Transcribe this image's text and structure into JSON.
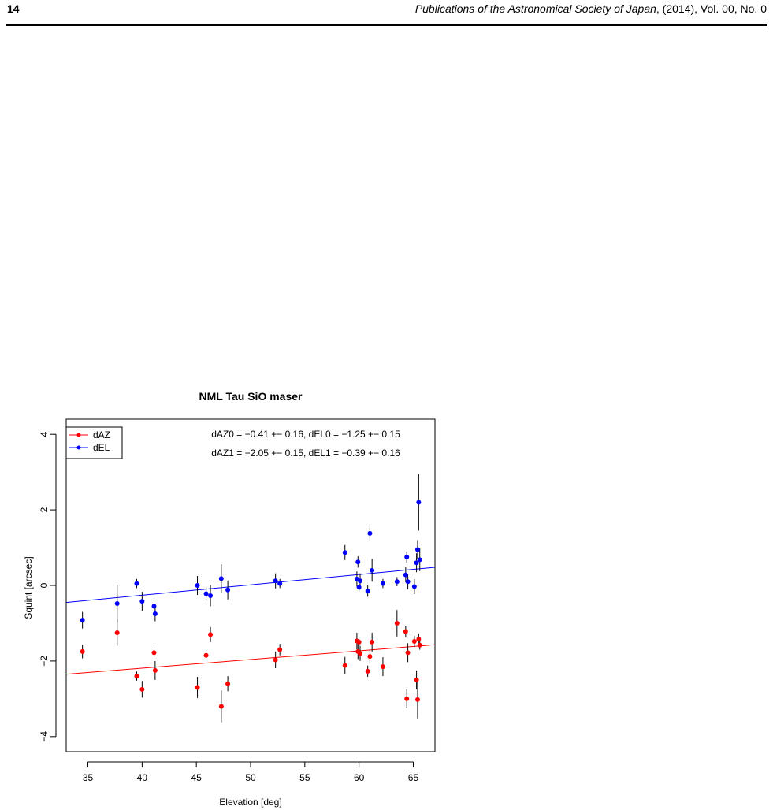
{
  "page_header": {
    "page_number": "14",
    "journal": "Publications of the Astronomical Society of Japan",
    "citation": ", (2014), Vol. 00, No. 0"
  },
  "chart_data": {
    "type": "scatter",
    "title": "NML Tau SiO maser",
    "xlabel": "Elevation [deg]",
    "ylabel": "Squint [arcsec]",
    "xlim": [
      33,
      67
    ],
    "ylim": [
      -4.4,
      4.4
    ],
    "x_ticks": [
      35,
      40,
      45,
      50,
      55,
      60,
      65
    ],
    "y_ticks": [
      -4,
      -2,
      0,
      2,
      4
    ],
    "y_tick_labels": [
      "−4",
      "−2",
      "0",
      "2",
      "4"
    ],
    "grid": false,
    "legend_position": "top-left",
    "annotations": [
      "dAZ0 = −0.41 +− 0.16, dEL0 = −1.25 +− 0.15",
      "dAZ1 = −2.05 +− 0.15, dEL1 = −0.39 +− 0.16"
    ],
    "series": [
      {
        "name": "dAZ",
        "color": "#ff0000",
        "points": [
          {
            "x": 34.5,
            "y": -1.75,
            "err": 0.18
          },
          {
            "x": 37.7,
            "y": -1.25,
            "err": 0.35
          },
          {
            "x": 39.5,
            "y": -2.4,
            "err": 0.12
          },
          {
            "x": 40.0,
            "y": -2.75,
            "err": 0.22
          },
          {
            "x": 41.1,
            "y": -1.78,
            "err": 0.2
          },
          {
            "x": 41.2,
            "y": -2.25,
            "err": 0.25
          },
          {
            "x": 45.1,
            "y": -2.7,
            "err": 0.28
          },
          {
            "x": 45.9,
            "y": -1.85,
            "err": 0.13
          },
          {
            "x": 46.3,
            "y": -1.3,
            "err": 0.2
          },
          {
            "x": 47.3,
            "y": -3.2,
            "err": 0.42
          },
          {
            "x": 47.9,
            "y": -2.6,
            "err": 0.2
          },
          {
            "x": 52.3,
            "y": -1.97,
            "err": 0.22
          },
          {
            "x": 52.7,
            "y": -1.7,
            "err": 0.15
          },
          {
            "x": 58.7,
            "y": -2.12,
            "err": 0.23
          },
          {
            "x": 59.8,
            "y": -1.47,
            "err": 0.22
          },
          {
            "x": 59.9,
            "y": -1.75,
            "err": 0.2
          },
          {
            "x": 60.0,
            "y": -1.5,
            "err": 0.1
          },
          {
            "x": 60.1,
            "y": -1.8,
            "err": 0.2
          },
          {
            "x": 60.8,
            "y": -2.27,
            "err": 0.15
          },
          {
            "x": 61.0,
            "y": -1.88,
            "err": 0.2
          },
          {
            "x": 61.2,
            "y": -1.5,
            "err": 0.25
          },
          {
            "x": 62.2,
            "y": -2.15,
            "err": 0.25
          },
          {
            "x": 63.5,
            "y": -1.0,
            "err": 0.35
          },
          {
            "x": 64.3,
            "y": -1.22,
            "err": 0.15
          },
          {
            "x": 64.4,
            "y": -3.0,
            "err": 0.25
          },
          {
            "x": 64.5,
            "y": -1.78,
            "err": 0.25
          },
          {
            "x": 65.1,
            "y": -1.48,
            "err": 0.15
          },
          {
            "x": 65.3,
            "y": -2.5,
            "err": 0.25
          },
          {
            "x": 65.4,
            "y": -3.02,
            "err": 0.5
          },
          {
            "x": 65.5,
            "y": -1.42,
            "err": 0.15
          },
          {
            "x": 65.6,
            "y": -1.58,
            "err": 0.12
          }
        ],
        "fit_line": [
          [
            33,
            -2.35
          ],
          [
            67,
            -1.57
          ]
        ]
      },
      {
        "name": "dEL",
        "color": "#0000ff",
        "points": [
          {
            "x": 34.5,
            "y": -0.92,
            "err": 0.22
          },
          {
            "x": 37.7,
            "y": -0.48,
            "err": 0.5
          },
          {
            "x": 39.5,
            "y": 0.05,
            "err": 0.12
          },
          {
            "x": 40.0,
            "y": -0.42,
            "err": 0.25
          },
          {
            "x": 41.1,
            "y": -0.55,
            "err": 0.2
          },
          {
            "x": 41.2,
            "y": -0.75,
            "err": 0.2
          },
          {
            "x": 45.1,
            "y": 0.0,
            "err": 0.25
          },
          {
            "x": 45.9,
            "y": -0.22,
            "err": 0.2
          },
          {
            "x": 46.3,
            "y": -0.27,
            "err": 0.28
          },
          {
            "x": 47.3,
            "y": 0.18,
            "err": 0.38
          },
          {
            "x": 47.9,
            "y": -0.12,
            "err": 0.25
          },
          {
            "x": 52.3,
            "y": 0.12,
            "err": 0.2
          },
          {
            "x": 52.7,
            "y": 0.05,
            "err": 0.12
          },
          {
            "x": 58.7,
            "y": 0.87,
            "err": 0.2
          },
          {
            "x": 59.8,
            "y": 0.17,
            "err": 0.2
          },
          {
            "x": 59.9,
            "y": 0.62,
            "err": 0.15
          },
          {
            "x": 60.0,
            "y": -0.05,
            "err": 0.1
          },
          {
            "x": 60.1,
            "y": 0.12,
            "err": 0.2
          },
          {
            "x": 60.8,
            "y": -0.15,
            "err": 0.15
          },
          {
            "x": 61.0,
            "y": 1.38,
            "err": 0.2
          },
          {
            "x": 61.2,
            "y": 0.4,
            "err": 0.3
          },
          {
            "x": 62.2,
            "y": 0.05,
            "err": 0.12
          },
          {
            "x": 63.5,
            "y": 0.1,
            "err": 0.12
          },
          {
            "x": 64.3,
            "y": 0.28,
            "err": 0.2
          },
          {
            "x": 64.4,
            "y": 0.75,
            "err": 0.15
          },
          {
            "x": 64.5,
            "y": 0.1,
            "err": 0.2
          },
          {
            "x": 65.1,
            "y": -0.03,
            "err": 0.2
          },
          {
            "x": 65.3,
            "y": 0.6,
            "err": 0.25
          },
          {
            "x": 65.4,
            "y": 0.95,
            "err": 0.25
          },
          {
            "x": 65.5,
            "y": 2.2,
            "err": 0.75
          },
          {
            "x": 65.6,
            "y": 0.68,
            "err": 0.3
          }
        ],
        "fit_line": [
          [
            33,
            -0.45
          ],
          [
            67,
            0.48
          ]
        ]
      }
    ]
  }
}
